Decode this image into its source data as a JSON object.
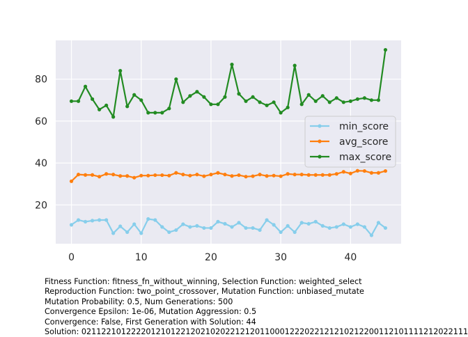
{
  "chart_data": {
    "type": "line",
    "title": "",
    "xlabel": "",
    "ylabel": "",
    "xlim": [
      -2.25,
      47.25
    ],
    "ylim": [
      1.5,
      98.5
    ],
    "x_ticks": [
      0,
      10,
      20,
      30,
      40
    ],
    "y_ticks": [
      20,
      40,
      60,
      80
    ],
    "grid": true,
    "legend_position": "center-right",
    "x": [
      0,
      1,
      2,
      3,
      4,
      5,
      6,
      7,
      8,
      9,
      10,
      11,
      12,
      13,
      14,
      15,
      16,
      17,
      18,
      19,
      20,
      21,
      22,
      23,
      24,
      25,
      26,
      27,
      28,
      29,
      30,
      31,
      32,
      33,
      34,
      35,
      36,
      37,
      38,
      39,
      40,
      41,
      42,
      43,
      44,
      45
    ],
    "series": [
      {
        "name": "min_score",
        "color": "#87ceeb",
        "values": [
          10.5,
          12.8,
          12,
          12.5,
          12.8,
          12.8,
          6.5,
          9.8,
          7,
          10.8,
          6.5,
          13.3,
          12.8,
          9.5,
          7,
          8,
          10.8,
          9.5,
          10,
          9,
          9,
          12,
          11,
          9.5,
          11.5,
          9,
          9,
          8,
          12.8,
          10.5,
          7,
          10,
          7,
          11.5,
          11,
          12,
          10,
          9,
          9.5,
          10.8,
          9.5,
          10.8,
          9.5,
          5.5,
          11.5,
          9
        ]
      },
      {
        "name": "avg_score",
        "color": "#ff7f0e",
        "values": [
          31.3,
          34.5,
          34.3,
          34.3,
          33.5,
          34.8,
          34.5,
          33.8,
          33.8,
          33,
          34,
          34,
          34.2,
          34.2,
          34,
          35.3,
          34.5,
          34,
          34.5,
          33.7,
          34.5,
          35.3,
          34.5,
          33.8,
          34.2,
          33.5,
          33.7,
          34.5,
          33.8,
          34,
          33.7,
          34.8,
          34.5,
          34.5,
          34.3,
          34.3,
          34.3,
          34.3,
          34.8,
          35.8,
          35,
          36.3,
          36.2,
          35.3,
          35.3,
          36.2
        ]
      },
      {
        "name": "max_score",
        "color": "#228b22",
        "values": [
          69.5,
          69.5,
          76.5,
          70.5,
          65.5,
          67.5,
          62,
          84,
          67,
          72.5,
          70,
          64,
          64,
          64,
          66,
          80,
          69,
          72,
          74,
          71.5,
          68,
          68,
          71.5,
          87,
          73,
          69.5,
          71.5,
          69,
          67.5,
          69,
          64,
          66.5,
          86.5,
          68,
          72.5,
          69.5,
          72,
          69,
          71,
          69,
          69.5,
          70.5,
          71,
          70,
          70,
          94
        ]
      }
    ]
  },
  "caption": {
    "lines": [
      "Fitness Function: fitness_fn_without_winning, Selection Function: weighted_select",
      "Reproduction Function: two_point_crossover, Mutation Function: unbiased_mutate",
      "Mutation Probability: 0.5, Num Generations: 500",
      "Convergence Epsilon: 1e-06, Mutation Aggression: 0.5",
      "Convergence: False, First Generation with Solution: 44",
      "Solution: 021122101222201210122120210202212120110001222022121210212200112101111212022111"
    ]
  },
  "colors": {
    "plot_background": "#eaeaf2",
    "grid": "#ffffff",
    "text": "#262626"
  }
}
